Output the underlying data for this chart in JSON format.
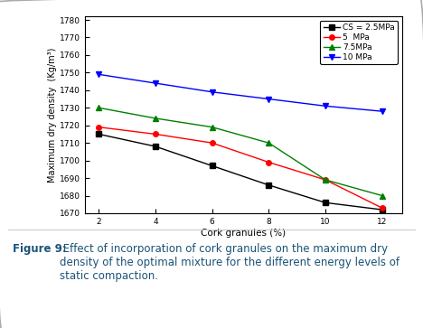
{
  "x": [
    2,
    4,
    6,
    8,
    10,
    12
  ],
  "series": [
    {
      "label": "CS = 2.5MPa",
      "y": [
        1715,
        1708,
        1697,
        1686,
        1676,
        1672
      ],
      "color": "black",
      "marker": "s",
      "linestyle": "-"
    },
    {
      "label": "5  MPa",
      "y": [
        1719,
        1715,
        1710,
        1699,
        1689,
        1673
      ],
      "color": "red",
      "marker": "o",
      "linestyle": "-"
    },
    {
      "label": "7.5MPa",
      "y": [
        1730,
        1724,
        1719,
        1710,
        1689,
        1680
      ],
      "color": "green",
      "marker": "^",
      "linestyle": "-"
    },
    {
      "label": "10 MPa",
      "y": [
        1749,
        1744,
        1739,
        1735,
        1731,
        1728
      ],
      "color": "blue",
      "marker": "v",
      "linestyle": "-"
    }
  ],
  "xlabel": "Cork granules (%)",
  "ylabel": "Maximum dry density  (Kg/m³)",
  "ylim": [
    1670,
    1782
  ],
  "yticks": [
    1670,
    1680,
    1690,
    1700,
    1710,
    1720,
    1730,
    1740,
    1750,
    1760,
    1770,
    1780
  ],
  "xticks": [
    2,
    4,
    6,
    8,
    10,
    12
  ],
  "caption_bold": "Figure 9:",
  "caption_rest": " Effect of incorporation of cork granules on the maximum dry density of the optimal mixture for the different energy levels of static compaction.",
  "background_color": "#ffffff"
}
